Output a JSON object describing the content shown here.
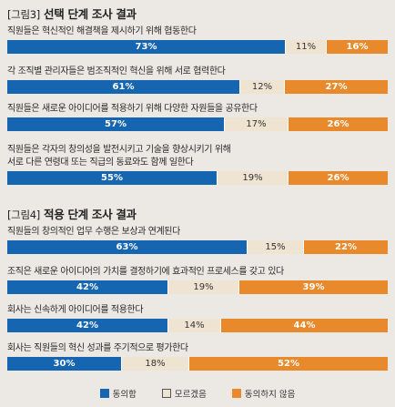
{
  "colors": {
    "agree": "#1565b0",
    "unknown": "#efe3d2",
    "disagree": "#e8892b"
  },
  "legend": [
    "동의함",
    "모르겠음",
    "동의하지 않음"
  ],
  "chart_data": [
    {
      "type": "bar",
      "stacked": true,
      "orientation": "horizontal",
      "tag": "[그림3]",
      "title": "선택 단계 조사 결과",
      "categories": [
        "직원들은 혁신적인 해결책을 제시하기 위해 협동한다",
        "각 조직별 관리자들은 범조직적인 혁신을 위해 서로 협력한다",
        "직원들은 새로운 아이디어를 적용하기 위해 다양한 자원들을 공유한다",
        "직원들은 각자의 창의성을 발전시키고 기술을 향상시키기 위해\n서로 다른 연령대 또는 직급의 동료와도 함께 일한다"
      ],
      "series": [
        {
          "name": "동의함",
          "values": [
            73,
            61,
            57,
            55
          ]
        },
        {
          "name": "모르겠음",
          "values": [
            11,
            12,
            17,
            19
          ]
        },
        {
          "name": "동의하지 않음",
          "values": [
            16,
            27,
            26,
            26
          ]
        }
      ],
      "xlim": [
        0,
        100
      ]
    },
    {
      "type": "bar",
      "stacked": true,
      "orientation": "horizontal",
      "tag": "[그림4]",
      "title": "적용 단계 조사 결과",
      "categories": [
        "직원들의 창의적인 업무 수행은 보상과 연계된다",
        "조직은 새로운 아이디어의 가치를 결정하기에 효과적인 프로세스를 갖고 있다",
        "회사는 신속하게 아이디어를 적용한다",
        "회사는 직원들의 혁신 성과를 주기적으로 평가한다"
      ],
      "series": [
        {
          "name": "동의함",
          "values": [
            63,
            42,
            42,
            30
          ]
        },
        {
          "name": "모르겠음",
          "values": [
            15,
            19,
            14,
            18
          ]
        },
        {
          "name": "동의하지 않음",
          "values": [
            22,
            39,
            44,
            52
          ]
        }
      ],
      "xlim": [
        0,
        100
      ]
    }
  ]
}
